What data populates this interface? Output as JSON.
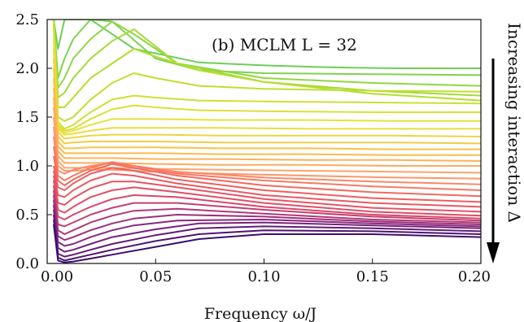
{
  "chart_data": {
    "type": "line",
    "panel_label": "(b) MCLM L = 32",
    "xlabel": "Frequency ω/J",
    "ylabel": "",
    "side_annotation": "Increasing interaction Δ",
    "xlim": [
      0.0,
      0.2
    ],
    "ylim": [
      0.0,
      2.5
    ],
    "xticks": [
      "0.00",
      "0.05",
      "0.10",
      "0.15",
      "0.20"
    ],
    "yticks": [
      "0.0",
      "0.5",
      "1.0",
      "1.5",
      "2.0",
      "2.5"
    ],
    "grid": false,
    "legend": "none",
    "colormap": [
      "#3b0f70",
      "#8c2981",
      "#de4968",
      "#f0605d",
      "#fe9f6d",
      "#fcbf49",
      "#e8e33a",
      "#b5de2b",
      "#6ece58"
    ],
    "series": [
      {
        "x": [
          0.003,
          0.005,
          0.008,
          0.012,
          0.02,
          0.04,
          0.07,
          0.1,
          0.13,
          0.16,
          0.2
        ],
        "y": [
          2.5,
          2.2,
          2.5,
          2.5,
          2.5,
          2.2,
          2.06,
          2.03,
          2.01,
          2.0,
          2.0
        ]
      },
      {
        "x": [
          0.003,
          0.005,
          0.008,
          0.012,
          0.02,
          0.03,
          0.05,
          0.07,
          0.1,
          0.15,
          0.2
        ],
        "y": [
          2.5,
          1.9,
          2.1,
          2.3,
          2.5,
          2.48,
          2.1,
          1.98,
          1.95,
          1.94,
          1.93
        ]
      },
      {
        "x": [
          0.003,
          0.005,
          0.008,
          0.012,
          0.02,
          0.03,
          0.04,
          0.06,
          0.1,
          0.15,
          0.2
        ],
        "y": [
          2.5,
          1.8,
          1.9,
          2.1,
          2.3,
          2.48,
          2.35,
          2.05,
          1.9,
          1.85,
          1.82
        ]
      },
      {
        "x": [
          0.003,
          0.005,
          0.008,
          0.012,
          0.02,
          0.03,
          0.04,
          0.06,
          0.1,
          0.15,
          0.2
        ],
        "y": [
          2.5,
          1.7,
          1.75,
          1.9,
          2.1,
          2.28,
          2.4,
          2.05,
          1.86,
          1.77,
          1.72
        ]
      },
      {
        "x": [
          0.003,
          0.005,
          0.008,
          0.012,
          0.02,
          0.03,
          0.04,
          0.05,
          0.07,
          0.1,
          0.15,
          0.2
        ],
        "y": [
          2.5,
          1.6,
          1.6,
          1.7,
          1.9,
          2.05,
          2.2,
          2.12,
          1.98,
          1.86,
          1.74,
          1.67
        ]
      },
      {
        "x": [
          0.003,
          0.005,
          0.008,
          0.012,
          0.02,
          0.03,
          0.04,
          0.05,
          0.07,
          0.1,
          0.15,
          0.2
        ],
        "y": [
          2.5,
          1.5,
          1.46,
          1.5,
          1.68,
          1.85,
          1.95,
          1.9,
          1.82,
          1.79,
          1.77,
          1.76
        ]
      },
      {
        "x": [
          0.003,
          0.005,
          0.008,
          0.012,
          0.02,
          0.03,
          0.04,
          0.05,
          0.07,
          0.1,
          0.15,
          0.2
        ],
        "y": [
          2.45,
          1.45,
          1.38,
          1.42,
          1.55,
          1.68,
          1.72,
          1.7,
          1.67,
          1.66,
          1.65,
          1.64
        ]
      },
      {
        "x": [
          0.003,
          0.005,
          0.008,
          0.012,
          0.02,
          0.03,
          0.04,
          0.05,
          0.07,
          0.1,
          0.15,
          0.2
        ],
        "y": [
          2.4,
          1.42,
          1.36,
          1.38,
          1.48,
          1.58,
          1.62,
          1.6,
          1.57,
          1.56,
          1.55,
          1.55
        ]
      },
      {
        "x": [
          0.003,
          0.005,
          0.008,
          0.012,
          0.02,
          0.03,
          0.05,
          0.08,
          0.12,
          0.16,
          0.2
        ],
        "y": [
          2.3,
          1.4,
          1.34,
          1.36,
          1.42,
          1.48,
          1.48,
          1.47,
          1.47,
          1.46,
          1.46
        ]
      },
      {
        "x": [
          0.003,
          0.005,
          0.008,
          0.012,
          0.02,
          0.03,
          0.05,
          0.08,
          0.12,
          0.16,
          0.2
        ],
        "y": [
          2.2,
          1.38,
          1.32,
          1.33,
          1.36,
          1.39,
          1.39,
          1.39,
          1.38,
          1.38,
          1.38
        ]
      },
      {
        "x": [
          0.003,
          0.005,
          0.008,
          0.012,
          0.02,
          0.03,
          0.05,
          0.08,
          0.12,
          0.16,
          0.2
        ],
        "y": [
          2.1,
          1.35,
          1.28,
          1.29,
          1.31,
          1.32,
          1.32,
          1.31,
          1.31,
          1.31,
          1.3
        ]
      },
      {
        "x": [
          0.003,
          0.005,
          0.008,
          0.012,
          0.02,
          0.03,
          0.05,
          0.08,
          0.12,
          0.16,
          0.2
        ],
        "y": [
          2.0,
          1.3,
          1.23,
          1.24,
          1.25,
          1.25,
          1.25,
          1.24,
          1.24,
          1.24,
          1.23
        ]
      },
      {
        "x": [
          0.003,
          0.005,
          0.008,
          0.012,
          0.02,
          0.03,
          0.05,
          0.08,
          0.12,
          0.16,
          0.2
        ],
        "y": [
          1.9,
          1.25,
          1.18,
          1.18,
          1.19,
          1.19,
          1.19,
          1.18,
          1.18,
          1.17,
          1.17
        ]
      },
      {
        "x": [
          0.003,
          0.005,
          0.008,
          0.012,
          0.02,
          0.03,
          0.05,
          0.08,
          0.12,
          0.16,
          0.2
        ],
        "y": [
          1.8,
          1.2,
          1.13,
          1.13,
          1.13,
          1.13,
          1.13,
          1.12,
          1.12,
          1.11,
          1.11
        ]
      },
      {
        "x": [
          0.003,
          0.005,
          0.008,
          0.012,
          0.02,
          0.03,
          0.05,
          0.08,
          0.12,
          0.16,
          0.2
        ],
        "y": [
          1.7,
          1.15,
          1.08,
          1.08,
          1.08,
          1.08,
          1.07,
          1.07,
          1.06,
          1.06,
          1.05
        ]
      },
      {
        "x": [
          0.003,
          0.005,
          0.008,
          0.012,
          0.02,
          0.03,
          0.05,
          0.08,
          0.12,
          0.16,
          0.2
        ],
        "y": [
          1.6,
          1.1,
          1.03,
          1.03,
          1.03,
          1.03,
          1.02,
          1.01,
          1.01,
          1.0,
          1.0
        ]
      },
      {
        "x": [
          0.003,
          0.005,
          0.008,
          0.012,
          0.02,
          0.03,
          0.05,
          0.08,
          0.12,
          0.16,
          0.2
        ],
        "y": [
          1.5,
          1.05,
          0.98,
          0.98,
          0.98,
          0.98,
          0.97,
          0.96,
          0.95,
          0.94,
          0.93
        ]
      },
      {
        "x": [
          0.003,
          0.005,
          0.008,
          0.012,
          0.02,
          0.03,
          0.05,
          0.08,
          0.12,
          0.16,
          0.2
        ],
        "y": [
          1.4,
          1.0,
          0.95,
          0.95,
          0.96,
          0.96,
          0.94,
          0.92,
          0.9,
          0.88,
          0.87
        ]
      },
      {
        "x": [
          0.003,
          0.005,
          0.008,
          0.012,
          0.02,
          0.03,
          0.04,
          0.06,
          0.1,
          0.15,
          0.2
        ],
        "y": [
          1.3,
          0.95,
          0.92,
          0.96,
          1.0,
          1.03,
          1.0,
          0.94,
          0.88,
          0.84,
          0.81
        ]
      },
      {
        "x": [
          0.003,
          0.005,
          0.008,
          0.012,
          0.02,
          0.03,
          0.04,
          0.06,
          0.1,
          0.15,
          0.2
        ],
        "y": [
          1.2,
          0.9,
          0.85,
          0.9,
          0.98,
          1.04,
          1.0,
          0.92,
          0.85,
          0.79,
          0.75
        ]
      },
      {
        "x": [
          0.003,
          0.005,
          0.008,
          0.012,
          0.02,
          0.03,
          0.04,
          0.06,
          0.1,
          0.15,
          0.2
        ],
        "y": [
          1.1,
          0.85,
          0.8,
          0.86,
          0.95,
          1.02,
          0.98,
          0.9,
          0.8,
          0.73,
          0.69
        ]
      },
      {
        "x": [
          0.003,
          0.005,
          0.008,
          0.012,
          0.02,
          0.03,
          0.04,
          0.06,
          0.1,
          0.15,
          0.2
        ],
        "y": [
          1.0,
          0.78,
          0.75,
          0.82,
          0.92,
          0.98,
          0.95,
          0.86,
          0.75,
          0.67,
          0.63
        ]
      },
      {
        "x": [
          0.003,
          0.005,
          0.008,
          0.012,
          0.02,
          0.03,
          0.04,
          0.06,
          0.1,
          0.15,
          0.2
        ],
        "y": [
          0.95,
          0.7,
          0.68,
          0.75,
          0.85,
          0.92,
          0.9,
          0.82,
          0.7,
          0.62,
          0.58
        ]
      },
      {
        "x": [
          0.003,
          0.005,
          0.008,
          0.012,
          0.02,
          0.03,
          0.04,
          0.06,
          0.1,
          0.15,
          0.2
        ],
        "y": [
          0.9,
          0.62,
          0.6,
          0.67,
          0.77,
          0.84,
          0.84,
          0.78,
          0.66,
          0.57,
          0.53
        ]
      },
      {
        "x": [
          0.003,
          0.005,
          0.008,
          0.012,
          0.02,
          0.03,
          0.04,
          0.06,
          0.1,
          0.15,
          0.2
        ],
        "y": [
          0.85,
          0.55,
          0.52,
          0.58,
          0.68,
          0.75,
          0.78,
          0.73,
          0.62,
          0.53,
          0.49
        ]
      },
      {
        "x": [
          0.003,
          0.005,
          0.008,
          0.012,
          0.02,
          0.03,
          0.04,
          0.06,
          0.1,
          0.15,
          0.2
        ],
        "y": [
          0.8,
          0.48,
          0.45,
          0.5,
          0.58,
          0.66,
          0.7,
          0.68,
          0.58,
          0.5,
          0.46
        ]
      },
      {
        "x": [
          0.003,
          0.005,
          0.008,
          0.012,
          0.02,
          0.03,
          0.04,
          0.06,
          0.1,
          0.15,
          0.2
        ],
        "y": [
          0.75,
          0.4,
          0.38,
          0.42,
          0.5,
          0.57,
          0.62,
          0.62,
          0.55,
          0.48,
          0.44
        ]
      },
      {
        "x": [
          0.003,
          0.005,
          0.008,
          0.012,
          0.02,
          0.03,
          0.04,
          0.06,
          0.1,
          0.15,
          0.2
        ],
        "y": [
          0.7,
          0.34,
          0.3,
          0.34,
          0.42,
          0.49,
          0.54,
          0.56,
          0.51,
          0.45,
          0.42
        ]
      },
      {
        "x": [
          0.003,
          0.005,
          0.008,
          0.012,
          0.02,
          0.03,
          0.04,
          0.06,
          0.1,
          0.15,
          0.2
        ],
        "y": [
          0.65,
          0.28,
          0.24,
          0.27,
          0.34,
          0.41,
          0.46,
          0.5,
          0.48,
          0.43,
          0.4
        ]
      },
      {
        "x": [
          0.003,
          0.005,
          0.008,
          0.012,
          0.02,
          0.03,
          0.04,
          0.06,
          0.1,
          0.15,
          0.2
        ],
        "y": [
          0.6,
          0.22,
          0.18,
          0.2,
          0.27,
          0.34,
          0.39,
          0.44,
          0.45,
          0.41,
          0.38
        ]
      },
      {
        "x": [
          0.003,
          0.005,
          0.008,
          0.012,
          0.02,
          0.03,
          0.05,
          0.07,
          0.1,
          0.15,
          0.2
        ],
        "y": [
          0.55,
          0.16,
          0.12,
          0.14,
          0.2,
          0.27,
          0.35,
          0.41,
          0.42,
          0.39,
          0.36
        ]
      },
      {
        "x": [
          0.003,
          0.005,
          0.008,
          0.012,
          0.02,
          0.03,
          0.05,
          0.07,
          0.1,
          0.15,
          0.2
        ],
        "y": [
          0.5,
          0.1,
          0.07,
          0.09,
          0.14,
          0.2,
          0.29,
          0.36,
          0.38,
          0.36,
          0.33
        ]
      },
      {
        "x": [
          0.003,
          0.005,
          0.008,
          0.012,
          0.02,
          0.03,
          0.05,
          0.07,
          0.1,
          0.15,
          0.2
        ],
        "y": [
          0.45,
          0.06,
          0.03,
          0.05,
          0.09,
          0.14,
          0.23,
          0.3,
          0.34,
          0.33,
          0.3
        ]
      },
      {
        "x": [
          0.003,
          0.005,
          0.008,
          0.012,
          0.02,
          0.03,
          0.05,
          0.07,
          0.1,
          0.15,
          0.2
        ],
        "y": [
          0.4,
          0.03,
          0.01,
          0.02,
          0.05,
          0.09,
          0.17,
          0.25,
          0.3,
          0.3,
          0.27
        ]
      }
    ]
  }
}
